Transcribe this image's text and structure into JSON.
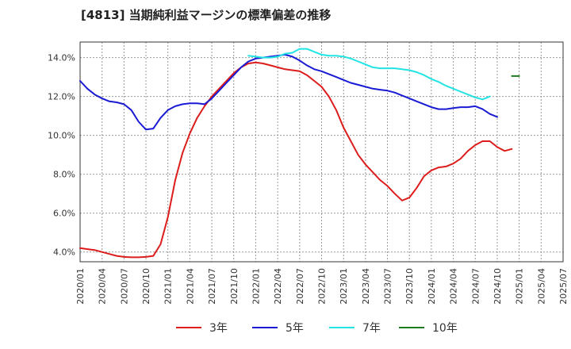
{
  "title": "[4813]  当期純利益マージンの標準偏差の推移",
  "chart_data": {
    "type": "line",
    "x_categories": [
      "2020/01",
      "2020/04",
      "2020/07",
      "2020/10",
      "2021/01",
      "2021/04",
      "2021/07",
      "2021/10",
      "2022/01",
      "2022/04",
      "2022/07",
      "2022/10",
      "2023/01",
      "2023/04",
      "2023/07",
      "2023/10",
      "2024/01",
      "2024/04",
      "2024/07",
      "2024/10",
      "2025/01",
      "2025/04",
      "2025/07"
    ],
    "y_ticks": [
      4.0,
      6.0,
      8.0,
      10.0,
      12.0,
      14.0
    ],
    "y_tick_labels": [
      "4.0%",
      "6.0%",
      "8.0%",
      "10.0%",
      "12.0%",
      "14.0%"
    ],
    "ylim": [
      3.5,
      14.8
    ],
    "grid": true,
    "legend_position": "bottom",
    "series": [
      {
        "name": "3年",
        "color": "#dd1c1c",
        "x_start": "2020/01",
        "values": [
          4.2,
          4.15,
          4.1,
          4.0,
          3.9,
          3.8,
          3.75,
          3.73,
          3.73,
          3.75,
          3.8,
          4.4,
          5.8,
          7.7,
          9.1,
          10.1,
          10.9,
          11.5,
          12.0,
          12.4,
          12.8,
          13.2,
          13.5,
          13.7,
          13.75,
          13.7,
          13.6,
          13.5,
          13.4,
          13.35,
          13.3,
          13.1,
          12.8,
          12.5,
          12.0,
          11.3,
          10.4,
          9.7,
          9.0,
          8.5,
          8.1,
          7.7,
          7.4,
          7.0,
          6.65,
          6.8,
          7.3,
          7.9,
          8.2,
          8.35,
          8.4,
          8.55,
          8.8,
          9.2,
          9.5,
          9.7,
          9.7,
          9.4,
          9.2,
          9.3
        ]
      },
      {
        "name": "5年",
        "color": "#1a1ad4",
        "x_start": "2020/01",
        "values": [
          12.8,
          12.4,
          12.1,
          11.9,
          11.75,
          11.7,
          11.6,
          11.3,
          10.7,
          10.3,
          10.35,
          10.9,
          11.3,
          11.5,
          11.6,
          11.65,
          11.65,
          11.6,
          11.9,
          12.3,
          12.7,
          13.1,
          13.5,
          13.8,
          13.95,
          14.0,
          14.05,
          14.1,
          14.15,
          14.05,
          13.85,
          13.6,
          13.4,
          13.3,
          13.15,
          13.0,
          12.85,
          12.7,
          12.6,
          12.5,
          12.4,
          12.35,
          12.3,
          12.2,
          12.05,
          11.9,
          11.75,
          11.6,
          11.45,
          11.35,
          11.35,
          11.4,
          11.45,
          11.45,
          11.5,
          11.35,
          11.1,
          10.95
        ]
      },
      {
        "name": "7年",
        "color": "#22e4e4",
        "x_start": "2021/12",
        "values": [
          14.1,
          14.05,
          14.0,
          14.0,
          14.05,
          14.2,
          14.25,
          14.45,
          14.45,
          14.3,
          14.15,
          14.1,
          14.1,
          14.05,
          13.95,
          13.8,
          13.65,
          13.5,
          13.45,
          13.45,
          13.45,
          13.4,
          13.35,
          13.25,
          13.1,
          12.9,
          12.75,
          12.55,
          12.4,
          12.25,
          12.1,
          11.95,
          11.85,
          12.0
        ]
      },
      {
        "name": "10年",
        "color": "#1e7a1e",
        "x_start": "2024/12",
        "values": [
          13.05,
          13.05
        ]
      }
    ]
  }
}
